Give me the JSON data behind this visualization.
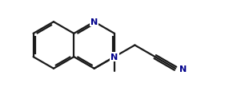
{
  "bg_color": "#ffffff",
  "bond_color": "#1a1a1a",
  "N_color": "#00008B",
  "lw": 1.6,
  "dbo": 0.022,
  "figsize": [
    2.91,
    1.15
  ],
  "dpi": 100,
  "xlim": [
    0,
    2.91
  ],
  "ylim": [
    0,
    1.15
  ]
}
